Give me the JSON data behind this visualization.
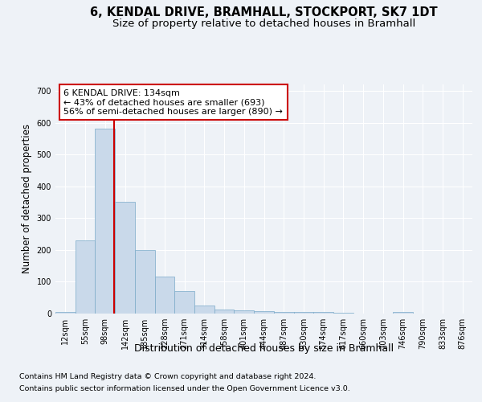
{
  "title": "6, KENDAL DRIVE, BRAMHALL, STOCKPORT, SK7 1DT",
  "subtitle": "Size of property relative to detached houses in Bramhall",
  "xlabel": "Distribution of detached houses by size in Bramhall",
  "ylabel": "Number of detached properties",
  "footer_line1": "Contains HM Land Registry data © Crown copyright and database right 2024.",
  "footer_line2": "Contains public sector information licensed under the Open Government Licence v3.0.",
  "bin_labels": [
    "12sqm",
    "55sqm",
    "98sqm",
    "142sqm",
    "185sqm",
    "228sqm",
    "271sqm",
    "314sqm",
    "358sqm",
    "401sqm",
    "444sqm",
    "487sqm",
    "530sqm",
    "574sqm",
    "617sqm",
    "660sqm",
    "703sqm",
    "746sqm",
    "790sqm",
    "833sqm",
    "876sqm"
  ],
  "bar_values": [
    5,
    230,
    580,
    350,
    200,
    115,
    72,
    25,
    13,
    10,
    8,
    5,
    4,
    4,
    2,
    0,
    0,
    5,
    0,
    0,
    0
  ],
  "bar_color": "#c9d9ea",
  "bar_edge_color": "#7aaac8",
  "highlight_color": "#cc0000",
  "annotation_line1": "6 KENDAL DRIVE: 134sqm",
  "annotation_line2": "← 43% of detached houses are smaller (693)",
  "annotation_line3": "56% of semi-detached houses are larger (890) →",
  "annotation_box_color": "#ffffff",
  "annotation_box_edge": "#cc0000",
  "ylim": [
    0,
    720
  ],
  "yticks": [
    0,
    100,
    200,
    300,
    400,
    500,
    600,
    700
  ],
  "background_color": "#eef2f7",
  "plot_background": "#eef2f7",
  "grid_color": "#ffffff",
  "title_fontsize": 10.5,
  "subtitle_fontsize": 9.5,
  "ylabel_fontsize": 8.5,
  "xlabel_fontsize": 9,
  "tick_fontsize": 7,
  "annotation_fontsize": 8,
  "footer_fontsize": 6.8
}
